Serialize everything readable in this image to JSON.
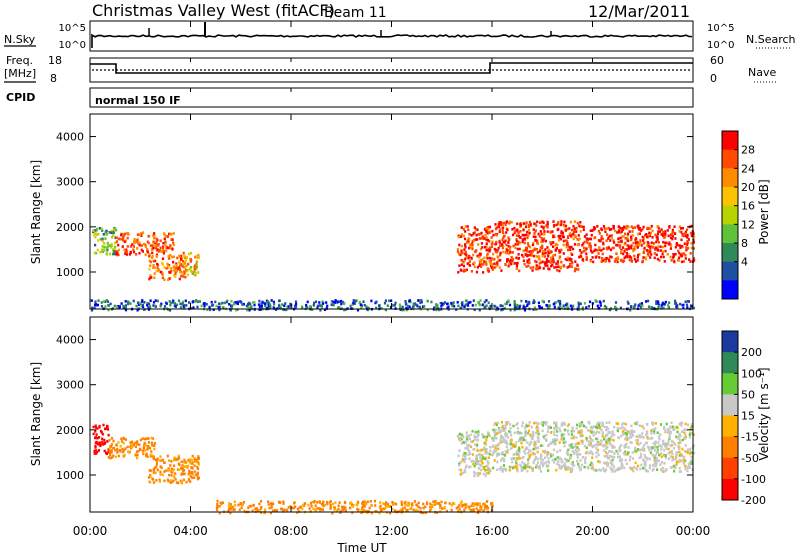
{
  "header": {
    "site": "Christmas Valley West (fitACF)",
    "beam": "Beam 11",
    "date": "12/Mar/2011"
  },
  "nsky_panel": {
    "left_label": "N.Sky",
    "left_ticks": [
      "10^5",
      "10^0"
    ],
    "right_label": "N.Search",
    "right_ticks": [
      "10^5",
      "10^0"
    ]
  },
  "freq_panel": {
    "left_label_line1": "Freq.",
    "left_label_line2": "[MHz]",
    "left_ticks": [
      "18",
      "8"
    ],
    "right_label": "Nave",
    "right_ticks": [
      "60",
      "0"
    ]
  },
  "cpid_panel": {
    "label": "CPID",
    "mode_text": "normal 150 IF"
  },
  "axes": {
    "time_ticks": [
      "00:00",
      "04:00",
      "08:00",
      "12:00",
      "16:00",
      "20:00",
      "00:00"
    ],
    "xlabel": "Time UT",
    "ylabel": "Slant Range [km]",
    "range_ticks": [
      "4000",
      "3000",
      "2000",
      "1000"
    ]
  },
  "power_colorbar": {
    "label": "Power [dB]",
    "ticks": [
      "28",
      "24",
      "20",
      "16",
      "12",
      "8",
      "4"
    ],
    "colors": [
      "#ff0000",
      "#ff4a00",
      "#ff8c00",
      "#ffc200",
      "#b8d400",
      "#5fc23a",
      "#2e8b57",
      "#1f4fa0",
      "#0000ff"
    ]
  },
  "velocity_colorbar": {
    "label": "Velocity [m s⁻¹]",
    "ticks": [
      "200",
      "100",
      "50",
      "15",
      "-15",
      "-50",
      "-100",
      "-200"
    ],
    "colors": [
      "#1a3aa0",
      "#2e8b57",
      "#66cc33",
      "#c8c8c8",
      "#ffb000",
      "#ff8000",
      "#ff4000",
      "#ff0000"
    ]
  },
  "chart_data": [
    {
      "type": "heatmap",
      "title": "Power",
      "xlabel": "Time UT",
      "ylabel": "Slant Range [km]",
      "x_range": [
        "00:00",
        "24:00"
      ],
      "ylim": [
        180,
        4500
      ],
      "value_label": "Power [dB]",
      "regions": [
        {
          "t_start": 0.05,
          "t_end": 1.0,
          "r_min": 1400,
          "r_max": 2000,
          "dB": 14
        },
        {
          "t_start": 1.0,
          "t_end": 3.3,
          "r_min": 1400,
          "r_max": 1900,
          "dB": 26
        },
        {
          "t_start": 2.3,
          "t_end": 3.8,
          "r_min": 850,
          "r_max": 1400,
          "dB": 24
        },
        {
          "t_start": 3.5,
          "t_end": 4.3,
          "r_min": 950,
          "r_max": 1450,
          "dB": 20
        },
        {
          "t_start": 14.6,
          "t_end": 16.0,
          "r_min": 1000,
          "r_max": 2050,
          "dB": 27
        },
        {
          "t_start": 16.0,
          "t_end": 19.5,
          "r_min": 1050,
          "r_max": 2150,
          "dB": 28
        },
        {
          "t_start": 19.5,
          "t_end": 24.0,
          "r_min": 1250,
          "r_max": 2050,
          "dB": 28
        },
        {
          "t_start": 0.0,
          "t_end": 24.0,
          "r_min": 180,
          "r_max": 400,
          "dB": 8
        }
      ]
    },
    {
      "type": "heatmap",
      "title": "Velocity",
      "xlabel": "Time UT",
      "ylabel": "Slant Range [km]",
      "x_range": [
        "00:00",
        "24:00"
      ],
      "ylim": [
        180,
        4500
      ],
      "value_label": "Velocity [m s-1]",
      "regions": [
        {
          "t_start": 0.05,
          "t_end": 0.7,
          "r_min": 1500,
          "r_max": 2150,
          "velocity": -200
        },
        {
          "t_start": 0.7,
          "t_end": 2.6,
          "r_min": 1400,
          "r_max": 1850,
          "velocity": -60
        },
        {
          "t_start": 2.3,
          "t_end": 4.3,
          "r_min": 850,
          "r_max": 1450,
          "velocity": -60
        },
        {
          "t_start": 14.6,
          "t_end": 16.0,
          "r_min": 1000,
          "r_max": 2000,
          "velocity": 0
        },
        {
          "t_start": 16.0,
          "t_end": 24.0,
          "r_min": 1100,
          "r_max": 2200,
          "velocity": 0
        },
        {
          "t_start": 5.0,
          "t_end": 16.0,
          "r_min": 180,
          "r_max": 450,
          "velocity": -60
        }
      ]
    }
  ]
}
